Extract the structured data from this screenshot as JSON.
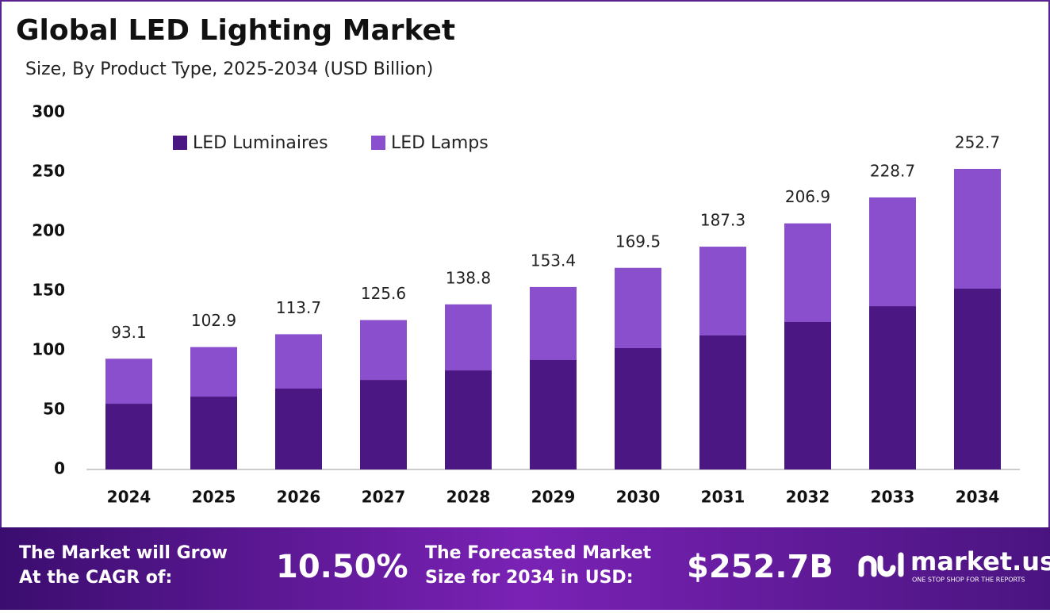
{
  "chart_data": {
    "type": "stacked_bar",
    "title": "Global LED Lighting Market",
    "subtitle": "Size, By Product Type, 2025-2034 (USD Billion)",
    "categories": [
      "2024",
      "2025",
      "2026",
      "2027",
      "2028",
      "2029",
      "2030",
      "2031",
      "2032",
      "2033",
      "2034"
    ],
    "series": [
      {
        "name": "LED Luminaires",
        "color": "#4b1782",
        "values": [
          55.3,
          61.3,
          68.0,
          75.3,
          83.3,
          92.0,
          102.0,
          112.7,
          124.0,
          137.3,
          152.0
        ]
      },
      {
        "name": "LED Lamps",
        "color": "#8a4fcc",
        "values": [
          37.8,
          41.6,
          45.7,
          50.3,
          55.5,
          61.4,
          67.5,
          74.6,
          82.9,
          91.4,
          100.7
        ]
      }
    ],
    "totals": [
      93.1,
      102.9,
      113.7,
      125.6,
      138.8,
      153.4,
      169.5,
      187.3,
      206.9,
      228.7,
      252.7
    ],
    "ylim": [
      0,
      300
    ],
    "yticks": [
      0,
      50,
      100,
      150,
      200,
      250,
      300
    ],
    "grid": false,
    "legend": "top-left"
  },
  "footer": {
    "cagr_label": [
      "The Market will Grow",
      "At the CAGR of:"
    ],
    "cagr": "10.50%",
    "forecast_label": [
      "The Forecasted Market",
      "Size for 2034 in USD:"
    ],
    "forecast": "$252.7B",
    "brand": "market.us",
    "tagline": "ONE STOP SHOP FOR THE REPORTS"
  }
}
